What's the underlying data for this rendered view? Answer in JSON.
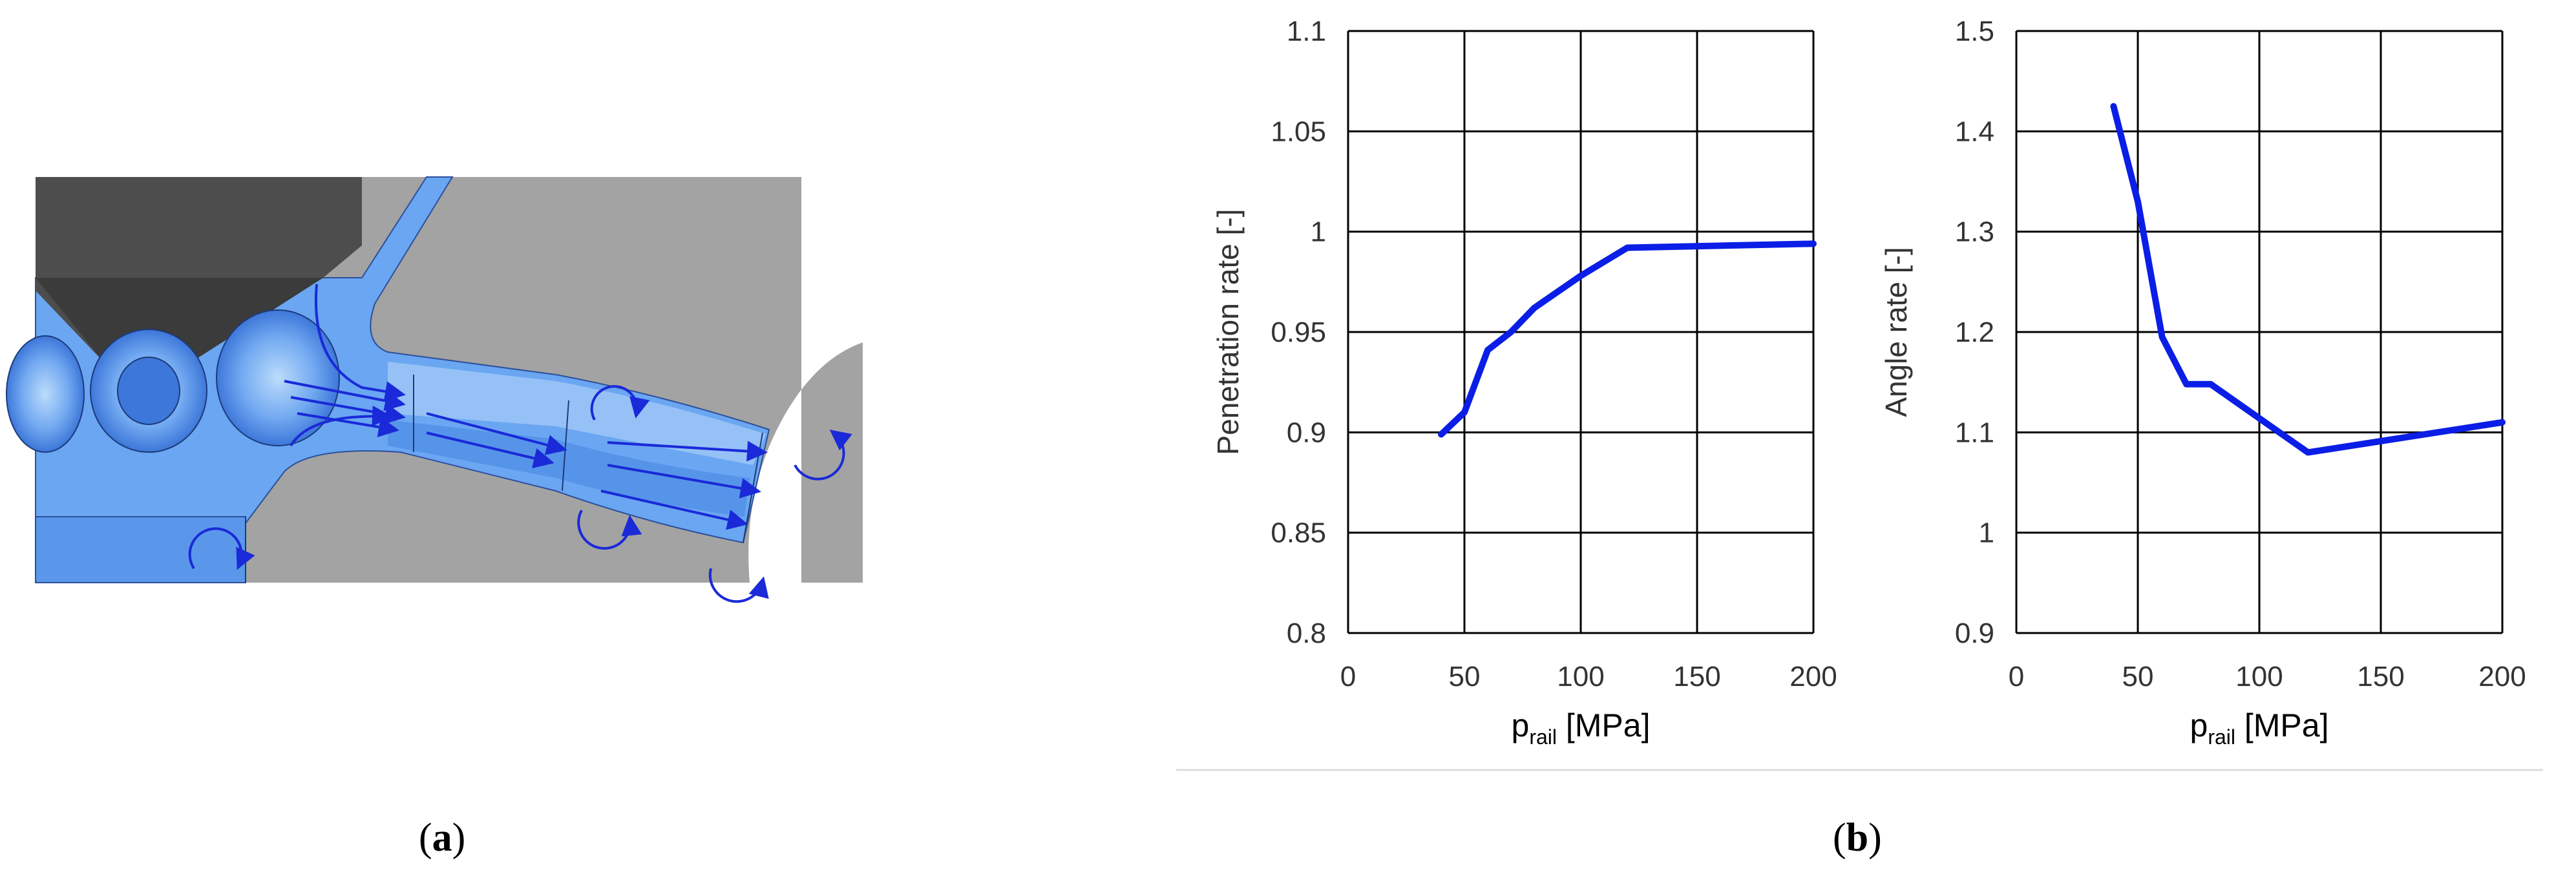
{
  "panels": {
    "a": {
      "open": "(",
      "letter": "a",
      "close": ")"
    },
    "b": {
      "open": "(",
      "letter": "b",
      "close": ")"
    }
  },
  "colors": {
    "series": "#0b1ee6",
    "arrow": "#1a2ad8",
    "fluid": "#6aa6f2",
    "fluid_light": "#a9cdf8",
    "solid_gray": "#a3a3a3",
    "needle": "#4d4d4d",
    "grid": "#000000"
  },
  "chart_data": [
    {
      "type": "line",
      "title": "",
      "xlabel_main": "p",
      "xlabel_sub": "rail",
      "xlabel_unit": " [MPa]",
      "ylabel": "Penetration rate [-]",
      "xlim": [
        0,
        200
      ],
      "ylim": [
        0.8,
        1.1
      ],
      "xticks": [
        "0",
        "50",
        "100",
        "150",
        "200"
      ],
      "yticks": [
        "0.8",
        "0.85",
        "0.9",
        "0.95",
        "1",
        "1.05",
        "1.1"
      ],
      "xgrid": [
        0,
        50,
        100,
        150,
        200
      ],
      "ygrid": [
        0.8,
        0.85,
        0.9,
        0.95,
        1.0,
        1.05,
        1.1
      ],
      "grid": true,
      "series": [
        {
          "x": [
            40,
            50,
            60,
            70,
            80,
            100,
            120,
            200
          ],
          "y": [
            0.899,
            0.91,
            0.941,
            0.95,
            0.962,
            0.978,
            0.992,
            0.994
          ]
        }
      ]
    },
    {
      "type": "line",
      "title": "",
      "xlabel_main": "p",
      "xlabel_sub": "rail",
      "xlabel_unit": " [MPa]",
      "ylabel": "Angle rate [-]",
      "xlim": [
        0,
        200
      ],
      "ylim": [
        0.9,
        1.5
      ],
      "xticks": [
        "0",
        "50",
        "100",
        "150",
        "200"
      ],
      "yticks": [
        "0.9",
        "1",
        "1.1",
        "1.2",
        "1.3",
        "1.4",
        "1.5"
      ],
      "xgrid": [
        0,
        50,
        100,
        150,
        200
      ],
      "ygrid": [
        0.9,
        1.0,
        1.1,
        1.2,
        1.3,
        1.4,
        1.5
      ],
      "grid": true,
      "series": [
        {
          "x": [
            40,
            50,
            60,
            70,
            80,
            120,
            200
          ],
          "y": [
            1.425,
            1.33,
            1.195,
            1.148,
            1.148,
            1.08,
            1.11
          ]
        }
      ]
    }
  ]
}
